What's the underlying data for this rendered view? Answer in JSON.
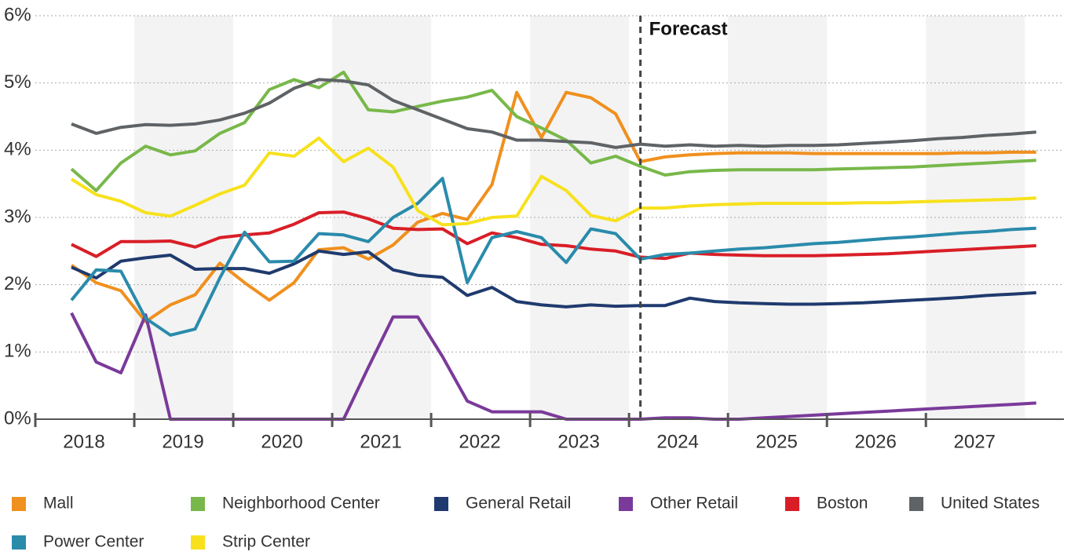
{
  "chart_data": {
    "type": "line",
    "x": [
      2018,
      2018.25,
      2018.5,
      2018.75,
      2019,
      2019.25,
      2019.5,
      2019.75,
      2020,
      2020.25,
      2020.5,
      2020.75,
      2021,
      2021.25,
      2021.5,
      2021.75,
      2022,
      2022.25,
      2022.5,
      2022.75,
      2023,
      2023.25,
      2023.5,
      2023.75,
      2024,
      2024.25,
      2024.5,
      2024.75,
      2025,
      2025.25,
      2025.5,
      2025.75,
      2026,
      2026.25,
      2026.5,
      2026.75,
      2027,
      2027.25,
      2027.5,
      2027.75
    ],
    "xlim": [
      2017.635,
      2028.03
    ],
    "xticks": [
      2018,
      2019,
      2020,
      2021,
      2022,
      2023,
      2024,
      2025,
      2026,
      2027
    ],
    "ylim": [
      0,
      6
    ],
    "yticks": [
      {
        "value": 0,
        "label": "0%"
      },
      {
        "value": 1,
        "label": "1%"
      },
      {
        "value": 2,
        "label": "2%"
      },
      {
        "value": 3,
        "label": "3%"
      },
      {
        "value": 4,
        "label": "4%"
      },
      {
        "value": 5,
        "label": "5%"
      },
      {
        "value": 6,
        "label": "6%"
      }
    ],
    "grid": true,
    "annotation": {
      "text": "Forecast",
      "x": 2023.75
    },
    "series": [
      {
        "name": "Mall",
        "color": "#f0901e",
        "values": [
          2.29,
          2.03,
          1.91,
          1.45,
          1.7,
          1.85,
          2.32,
          2.03,
          1.77,
          2.03,
          2.52,
          2.55,
          2.38,
          2.59,
          2.93,
          3.06,
          2.97,
          3.49,
          4.86,
          4.19,
          4.86,
          4.78,
          4.54,
          3.83,
          3.9,
          3.93,
          3.95,
          3.96,
          3.96,
          3.96,
          3.95,
          3.95,
          3.95,
          3.95,
          3.95,
          3.95,
          3.96,
          3.96,
          3.97,
          3.97
        ]
      },
      {
        "name": "Neighborhood Center",
        "color": "#78b84a",
        "values": [
          3.72,
          3.4,
          3.81,
          4.06,
          3.93,
          3.99,
          4.25,
          4.41,
          4.9,
          5.05,
          4.93,
          5.16,
          4.6,
          4.57,
          4.65,
          4.73,
          4.79,
          4.89,
          4.5,
          4.33,
          4.15,
          3.81,
          3.91,
          3.76,
          3.63,
          3.68,
          3.7,
          3.71,
          3.71,
          3.71,
          3.71,
          3.72,
          3.73,
          3.74,
          3.75,
          3.77,
          3.79,
          3.81,
          3.83,
          3.85
        ]
      },
      {
        "name": "General Retail",
        "color": "#1f3a6e",
        "values": [
          2.26,
          2.1,
          2.35,
          2.4,
          2.44,
          2.23,
          2.24,
          2.24,
          2.17,
          2.31,
          2.5,
          2.45,
          2.49,
          2.22,
          2.14,
          2.11,
          1.84,
          1.96,
          1.75,
          1.7,
          1.67,
          1.7,
          1.68,
          1.69,
          1.69,
          1.8,
          1.75,
          1.73,
          1.72,
          1.71,
          1.71,
          1.72,
          1.73,
          1.75,
          1.77,
          1.79,
          1.81,
          1.84,
          1.86,
          1.88
        ]
      },
      {
        "name": "Other Retail",
        "color": "#7a3a9a",
        "values": [
          1.58,
          0.85,
          0.69,
          1.55,
          0,
          0,
          0,
          0,
          0,
          0,
          0,
          0,
          0.77,
          1.52,
          1.52,
          0.93,
          0.27,
          0.11,
          0.11,
          0.11,
          0,
          0,
          0,
          0,
          0.02,
          0.02,
          0,
          0,
          0.02,
          0.04,
          0.06,
          0.08,
          0.1,
          0.12,
          0.14,
          0.16,
          0.18,
          0.2,
          0.22,
          0.24
        ]
      },
      {
        "name": "Boston",
        "color": "#d91e27",
        "values": [
          2.6,
          2.42,
          2.64,
          2.64,
          2.65,
          2.56,
          2.7,
          2.74,
          2.77,
          2.9,
          3.07,
          3.08,
          2.98,
          2.84,
          2.82,
          2.83,
          2.61,
          2.77,
          2.7,
          2.6,
          2.58,
          2.53,
          2.5,
          2.41,
          2.39,
          2.47,
          2.45,
          2.44,
          2.43,
          2.43,
          2.43,
          2.44,
          2.45,
          2.46,
          2.48,
          2.5,
          2.52,
          2.54,
          2.56,
          2.58
        ]
      },
      {
        "name": "United States",
        "color": "#5f6366",
        "values": [
          4.39,
          4.25,
          4.34,
          4.38,
          4.37,
          4.39,
          4.45,
          4.55,
          4.7,
          4.92,
          5.05,
          5.03,
          4.97,
          4.74,
          4.6,
          4.46,
          4.32,
          4.27,
          4.15,
          4.15,
          4.13,
          4.11,
          4.04,
          4.09,
          4.06,
          4.08,
          4.06,
          4.07,
          4.06,
          4.07,
          4.07,
          4.08,
          4.1,
          4.12,
          4.14,
          4.17,
          4.19,
          4.22,
          4.24,
          4.27
        ]
      },
      {
        "name": "Power Center",
        "color": "#2a8bab",
        "values": [
          1.77,
          2.22,
          2.2,
          1.5,
          1.25,
          1.34,
          2.1,
          2.78,
          2.34,
          2.35,
          2.76,
          2.74,
          2.64,
          3.0,
          3.21,
          3.58,
          2.03,
          2.7,
          2.79,
          2.7,
          2.33,
          2.83,
          2.76,
          2.38,
          2.45,
          2.47,
          2.5,
          2.53,
          2.55,
          2.58,
          2.61,
          2.63,
          2.66,
          2.69,
          2.71,
          2.74,
          2.77,
          2.79,
          2.82,
          2.84
        ]
      },
      {
        "name": "Strip Center",
        "color": "#f7e11c",
        "values": [
          3.57,
          3.34,
          3.24,
          3.07,
          3.02,
          3.18,
          3.35,
          3.48,
          3.96,
          3.91,
          4.18,
          3.83,
          4.03,
          3.75,
          3.1,
          2.89,
          2.91,
          3.0,
          3.02,
          3.61,
          3.4,
          3.03,
          2.95,
          3.14,
          3.14,
          3.17,
          3.19,
          3.2,
          3.21,
          3.21,
          3.21,
          3.21,
          3.22,
          3.22,
          3.23,
          3.24,
          3.25,
          3.26,
          3.27,
          3.29
        ]
      }
    ]
  }
}
